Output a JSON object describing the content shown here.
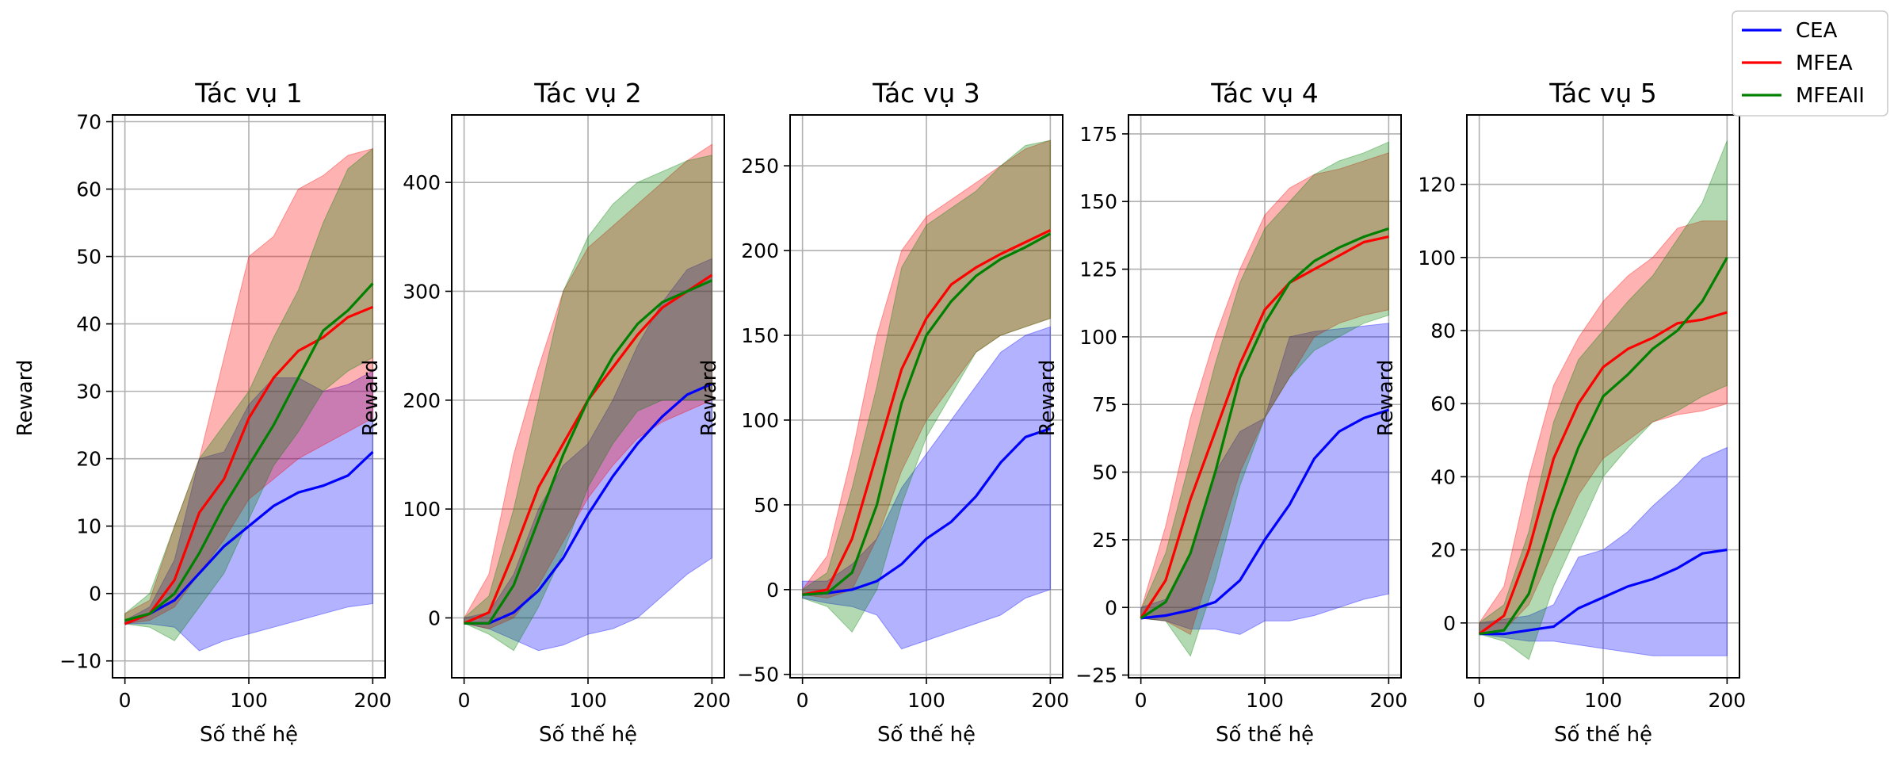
{
  "legend": {
    "placement": "top-right",
    "entries": [
      {
        "label": "CEA",
        "color": "#0000ff"
      },
      {
        "label": "MFEA",
        "color": "#ff0000"
      },
      {
        "label": "MFEAII",
        "color": "#008000"
      }
    ]
  },
  "chart_data": [
    {
      "type": "line",
      "title": "Tác vụ 1",
      "xlabel": "Số thế hệ",
      "ylabel": "Reward",
      "xlim": [
        -10,
        210
      ],
      "ylim": [
        -12.5,
        71
      ],
      "xticks": [
        0,
        100,
        200
      ],
      "yticks": [
        -10,
        0,
        10,
        20,
        30,
        40,
        50,
        60,
        70
      ],
      "grid": true,
      "series": [
        {
          "name": "CEA",
          "color": "#0000ff",
          "x": [
            0,
            20,
            40,
            60,
            80,
            100,
            120,
            140,
            160,
            180,
            200
          ],
          "mean": [
            -4.5,
            -3,
            -1,
            3,
            7,
            10,
            13,
            15,
            16,
            17.5,
            21
          ],
          "lower": [
            -4.5,
            -4.5,
            -5,
            -8.5,
            -7,
            -6,
            -5,
            -4,
            -3,
            -2,
            -1.5
          ],
          "upper": [
            -4,
            -2,
            5,
            20,
            21,
            28,
            32,
            32,
            30,
            31,
            33
          ]
        },
        {
          "name": "MFEA",
          "color": "#ff0000",
          "x": [
            0,
            20,
            40,
            60,
            80,
            100,
            120,
            140,
            160,
            180,
            200
          ],
          "mean": [
            -4.5,
            -3,
            2,
            12,
            17,
            26,
            32,
            36,
            38,
            41,
            42.5
          ],
          "lower": [
            -4.5,
            -4,
            -2,
            3,
            8,
            14,
            17,
            20,
            22,
            24,
            26
          ],
          "upper": [
            -3,
            -1,
            10,
            20,
            35,
            50,
            53,
            60,
            62,
            65,
            66
          ]
        },
        {
          "name": "MFEAII",
          "color": "#008000",
          "x": [
            0,
            20,
            40,
            60,
            80,
            100,
            120,
            140,
            160,
            180,
            200
          ],
          "mean": [
            -4,
            -3,
            0,
            6,
            13,
            19,
            25,
            32,
            39,
            42,
            46
          ],
          "lower": [
            -4.5,
            -5,
            -7,
            -2,
            3,
            11,
            19,
            24,
            30,
            33,
            35
          ],
          "upper": [
            -3,
            0,
            10,
            20,
            25,
            30,
            38,
            45,
            55,
            63,
            66
          ]
        }
      ]
    },
    {
      "type": "line",
      "title": "Tác vụ 2",
      "xlabel": "Số thế hệ",
      "ylabel": "Reward",
      "xlim": [
        -10,
        210
      ],
      "ylim": [
        -55,
        462
      ],
      "xticks": [
        0,
        100,
        200
      ],
      "yticks": [
        0,
        100,
        200,
        300,
        400
      ],
      "grid": true,
      "series": [
        {
          "name": "CEA",
          "color": "#0000ff",
          "x": [
            0,
            20,
            40,
            60,
            80,
            100,
            120,
            140,
            160,
            180,
            200
          ],
          "mean": [
            -5,
            -5,
            5,
            25,
            55,
            95,
            130,
            160,
            185,
            205,
            215
          ],
          "lower": [
            -5,
            -10,
            -20,
            -30,
            -25,
            -15,
            -10,
            0,
            20,
            40,
            55
          ],
          "upper": [
            0,
            5,
            40,
            100,
            140,
            160,
            200,
            250,
            290,
            320,
            330
          ]
        },
        {
          "name": "MFEA",
          "color": "#ff0000",
          "x": [
            0,
            20,
            40,
            60,
            80,
            100,
            120,
            140,
            160,
            180,
            200
          ],
          "mean": [
            -5,
            5,
            60,
            120,
            160,
            200,
            230,
            260,
            285,
            300,
            315
          ],
          "lower": [
            -5,
            -10,
            0,
            30,
            70,
            110,
            140,
            165,
            180,
            190,
            200
          ],
          "upper": [
            0,
            40,
            150,
            230,
            300,
            340,
            360,
            380,
            400,
            420,
            435
          ]
        },
        {
          "name": "MFEAII",
          "color": "#008000",
          "x": [
            0,
            20,
            40,
            60,
            80,
            100,
            120,
            140,
            160,
            180,
            200
          ],
          "mean": [
            -5,
            -5,
            30,
            90,
            150,
            200,
            240,
            270,
            290,
            300,
            310
          ],
          "lower": [
            -5,
            -15,
            -30,
            10,
            60,
            120,
            160,
            190,
            200,
            200,
            200
          ],
          "upper": [
            0,
            20,
            100,
            200,
            300,
            350,
            380,
            400,
            410,
            420,
            425
          ]
        }
      ]
    },
    {
      "type": "line",
      "title": "Tác vụ 3",
      "xlabel": "Số thế hệ",
      "ylabel": "Reward",
      "xlim": [
        -10,
        210
      ],
      "ylim": [
        -52,
        280
      ],
      "xticks": [
        0,
        100,
        200
      ],
      "yticks": [
        -50,
        0,
        50,
        100,
        150,
        200,
        250
      ],
      "grid": true,
      "series": [
        {
          "name": "CEA",
          "color": "#0000ff",
          "x": [
            0,
            20,
            40,
            60,
            80,
            100,
            120,
            140,
            160,
            180,
            200
          ],
          "mean": [
            -3,
            -2,
            0,
            5,
            15,
            30,
            40,
            55,
            75,
            90,
            95
          ],
          "lower": [
            -5,
            -8,
            -10,
            -15,
            -35,
            -30,
            -25,
            -20,
            -15,
            -5,
            0
          ],
          "upper": [
            5,
            5,
            15,
            30,
            60,
            80,
            100,
            120,
            140,
            150,
            155
          ]
        },
        {
          "name": "MFEA",
          "color": "#ff0000",
          "x": [
            0,
            20,
            40,
            60,
            80,
            100,
            120,
            140,
            160,
            180,
            200
          ],
          "mean": [
            -3,
            0,
            30,
            80,
            130,
            160,
            180,
            190,
            198,
            205,
            212
          ],
          "lower": [
            -3,
            -5,
            0,
            30,
            70,
            100,
            120,
            140,
            150,
            155,
            160
          ],
          "upper": [
            0,
            20,
            80,
            150,
            200,
            220,
            230,
            240,
            250,
            260,
            265
          ]
        },
        {
          "name": "MFEAII",
          "color": "#008000",
          "x": [
            0,
            20,
            40,
            60,
            80,
            100,
            120,
            140,
            160,
            180,
            200
          ],
          "mean": [
            -3,
            -2,
            10,
            50,
            110,
            150,
            170,
            185,
            195,
            202,
            210
          ],
          "lower": [
            -5,
            -10,
            -25,
            0,
            50,
            90,
            115,
            140,
            150,
            155,
            160
          ],
          "upper": [
            0,
            10,
            60,
            120,
            190,
            215,
            225,
            235,
            250,
            262,
            265
          ]
        }
      ]
    },
    {
      "type": "line",
      "title": "Tác vụ 4",
      "xlabel": "Số thế hệ",
      "ylabel": "Reward",
      "xlim": [
        -10,
        210
      ],
      "ylim": [
        -26,
        182
      ],
      "xticks": [
        0,
        100,
        200
      ],
      "yticks": [
        -25,
        0,
        25,
        50,
        75,
        100,
        125,
        150,
        175
      ],
      "grid": true,
      "series": [
        {
          "name": "CEA",
          "color": "#0000ff",
          "x": [
            0,
            20,
            40,
            60,
            80,
            100,
            120,
            140,
            160,
            180,
            200
          ],
          "mean": [
            -4,
            -3,
            -1,
            2,
            10,
            25,
            38,
            55,
            65,
            70,
            73
          ],
          "lower": [
            -4,
            -5,
            -8,
            -8,
            -10,
            -5,
            -5,
            -3,
            0,
            3,
            5
          ],
          "upper": [
            0,
            3,
            20,
            50,
            65,
            70,
            100,
            102,
            103,
            104,
            105
          ]
        },
        {
          "name": "MFEA",
          "color": "#ff0000",
          "x": [
            0,
            20,
            40,
            60,
            80,
            100,
            120,
            140,
            160,
            180,
            200
          ],
          "mean": [
            -4,
            10,
            40,
            65,
            90,
            110,
            120,
            125,
            130,
            135,
            137
          ],
          "lower": [
            -4,
            -5,
            -10,
            20,
            50,
            70,
            85,
            100,
            105,
            108,
            110
          ],
          "upper": [
            -1,
            30,
            70,
            100,
            125,
            145,
            155,
            160,
            162,
            165,
            168
          ]
        },
        {
          "name": "MFEAII",
          "color": "#008000",
          "x": [
            0,
            20,
            40,
            60,
            80,
            100,
            120,
            140,
            160,
            180,
            200
          ],
          "mean": [
            -4,
            2,
            20,
            50,
            85,
            105,
            120,
            128,
            133,
            137,
            140
          ],
          "lower": [
            -4,
            -5,
            -18,
            10,
            45,
            70,
            85,
            95,
            100,
            105,
            108
          ],
          "upper": [
            -1,
            20,
            55,
            90,
            120,
            140,
            150,
            160,
            165,
            168,
            172
          ]
        }
      ]
    },
    {
      "type": "line",
      "title": "Tác vụ 5",
      "xlabel": "Số thế hệ",
      "ylabel": "Reward",
      "xlim": [
        -10,
        210
      ],
      "ylim": [
        -15,
        139
      ],
      "xticks": [
        0,
        100,
        200
      ],
      "yticks": [
        0,
        20,
        40,
        60,
        80,
        100,
        120
      ],
      "grid": true,
      "series": [
        {
          "name": "CEA",
          "color": "#0000ff",
          "x": [
            0,
            20,
            40,
            60,
            80,
            100,
            120,
            140,
            160,
            180,
            200
          ],
          "mean": [
            -3,
            -3,
            -2,
            -1,
            4,
            7,
            10,
            12,
            15,
            19,
            20
          ],
          "lower": [
            -3,
            -4,
            -5,
            -5,
            -6,
            -7,
            -8,
            -9,
            -9,
            -9,
            -9
          ],
          "upper": [
            0,
            1,
            2,
            5,
            18,
            20,
            25,
            32,
            38,
            45,
            48
          ]
        },
        {
          "name": "MFEA",
          "color": "#ff0000",
          "x": [
            0,
            20,
            40,
            60,
            80,
            100,
            120,
            140,
            160,
            180,
            200
          ],
          "mean": [
            -3,
            2,
            20,
            45,
            60,
            70,
            75,
            78,
            82,
            83,
            85
          ],
          "lower": [
            -3,
            -2,
            5,
            20,
            35,
            45,
            50,
            55,
            57,
            58,
            60
          ],
          "upper": [
            0,
            10,
            40,
            65,
            78,
            88,
            95,
            100,
            108,
            110,
            110
          ]
        },
        {
          "name": "MFEAII",
          "color": "#008000",
          "x": [
            0,
            20,
            40,
            60,
            80,
            100,
            120,
            140,
            160,
            180,
            200
          ],
          "mean": [
            -3,
            -2,
            8,
            30,
            48,
            62,
            68,
            75,
            80,
            88,
            100
          ],
          "lower": [
            -3,
            -5,
            -10,
            10,
            25,
            40,
            48,
            55,
            58,
            62,
            65
          ],
          "upper": [
            0,
            5,
            25,
            55,
            72,
            80,
            88,
            95,
            105,
            115,
            132
          ]
        }
      ]
    }
  ]
}
